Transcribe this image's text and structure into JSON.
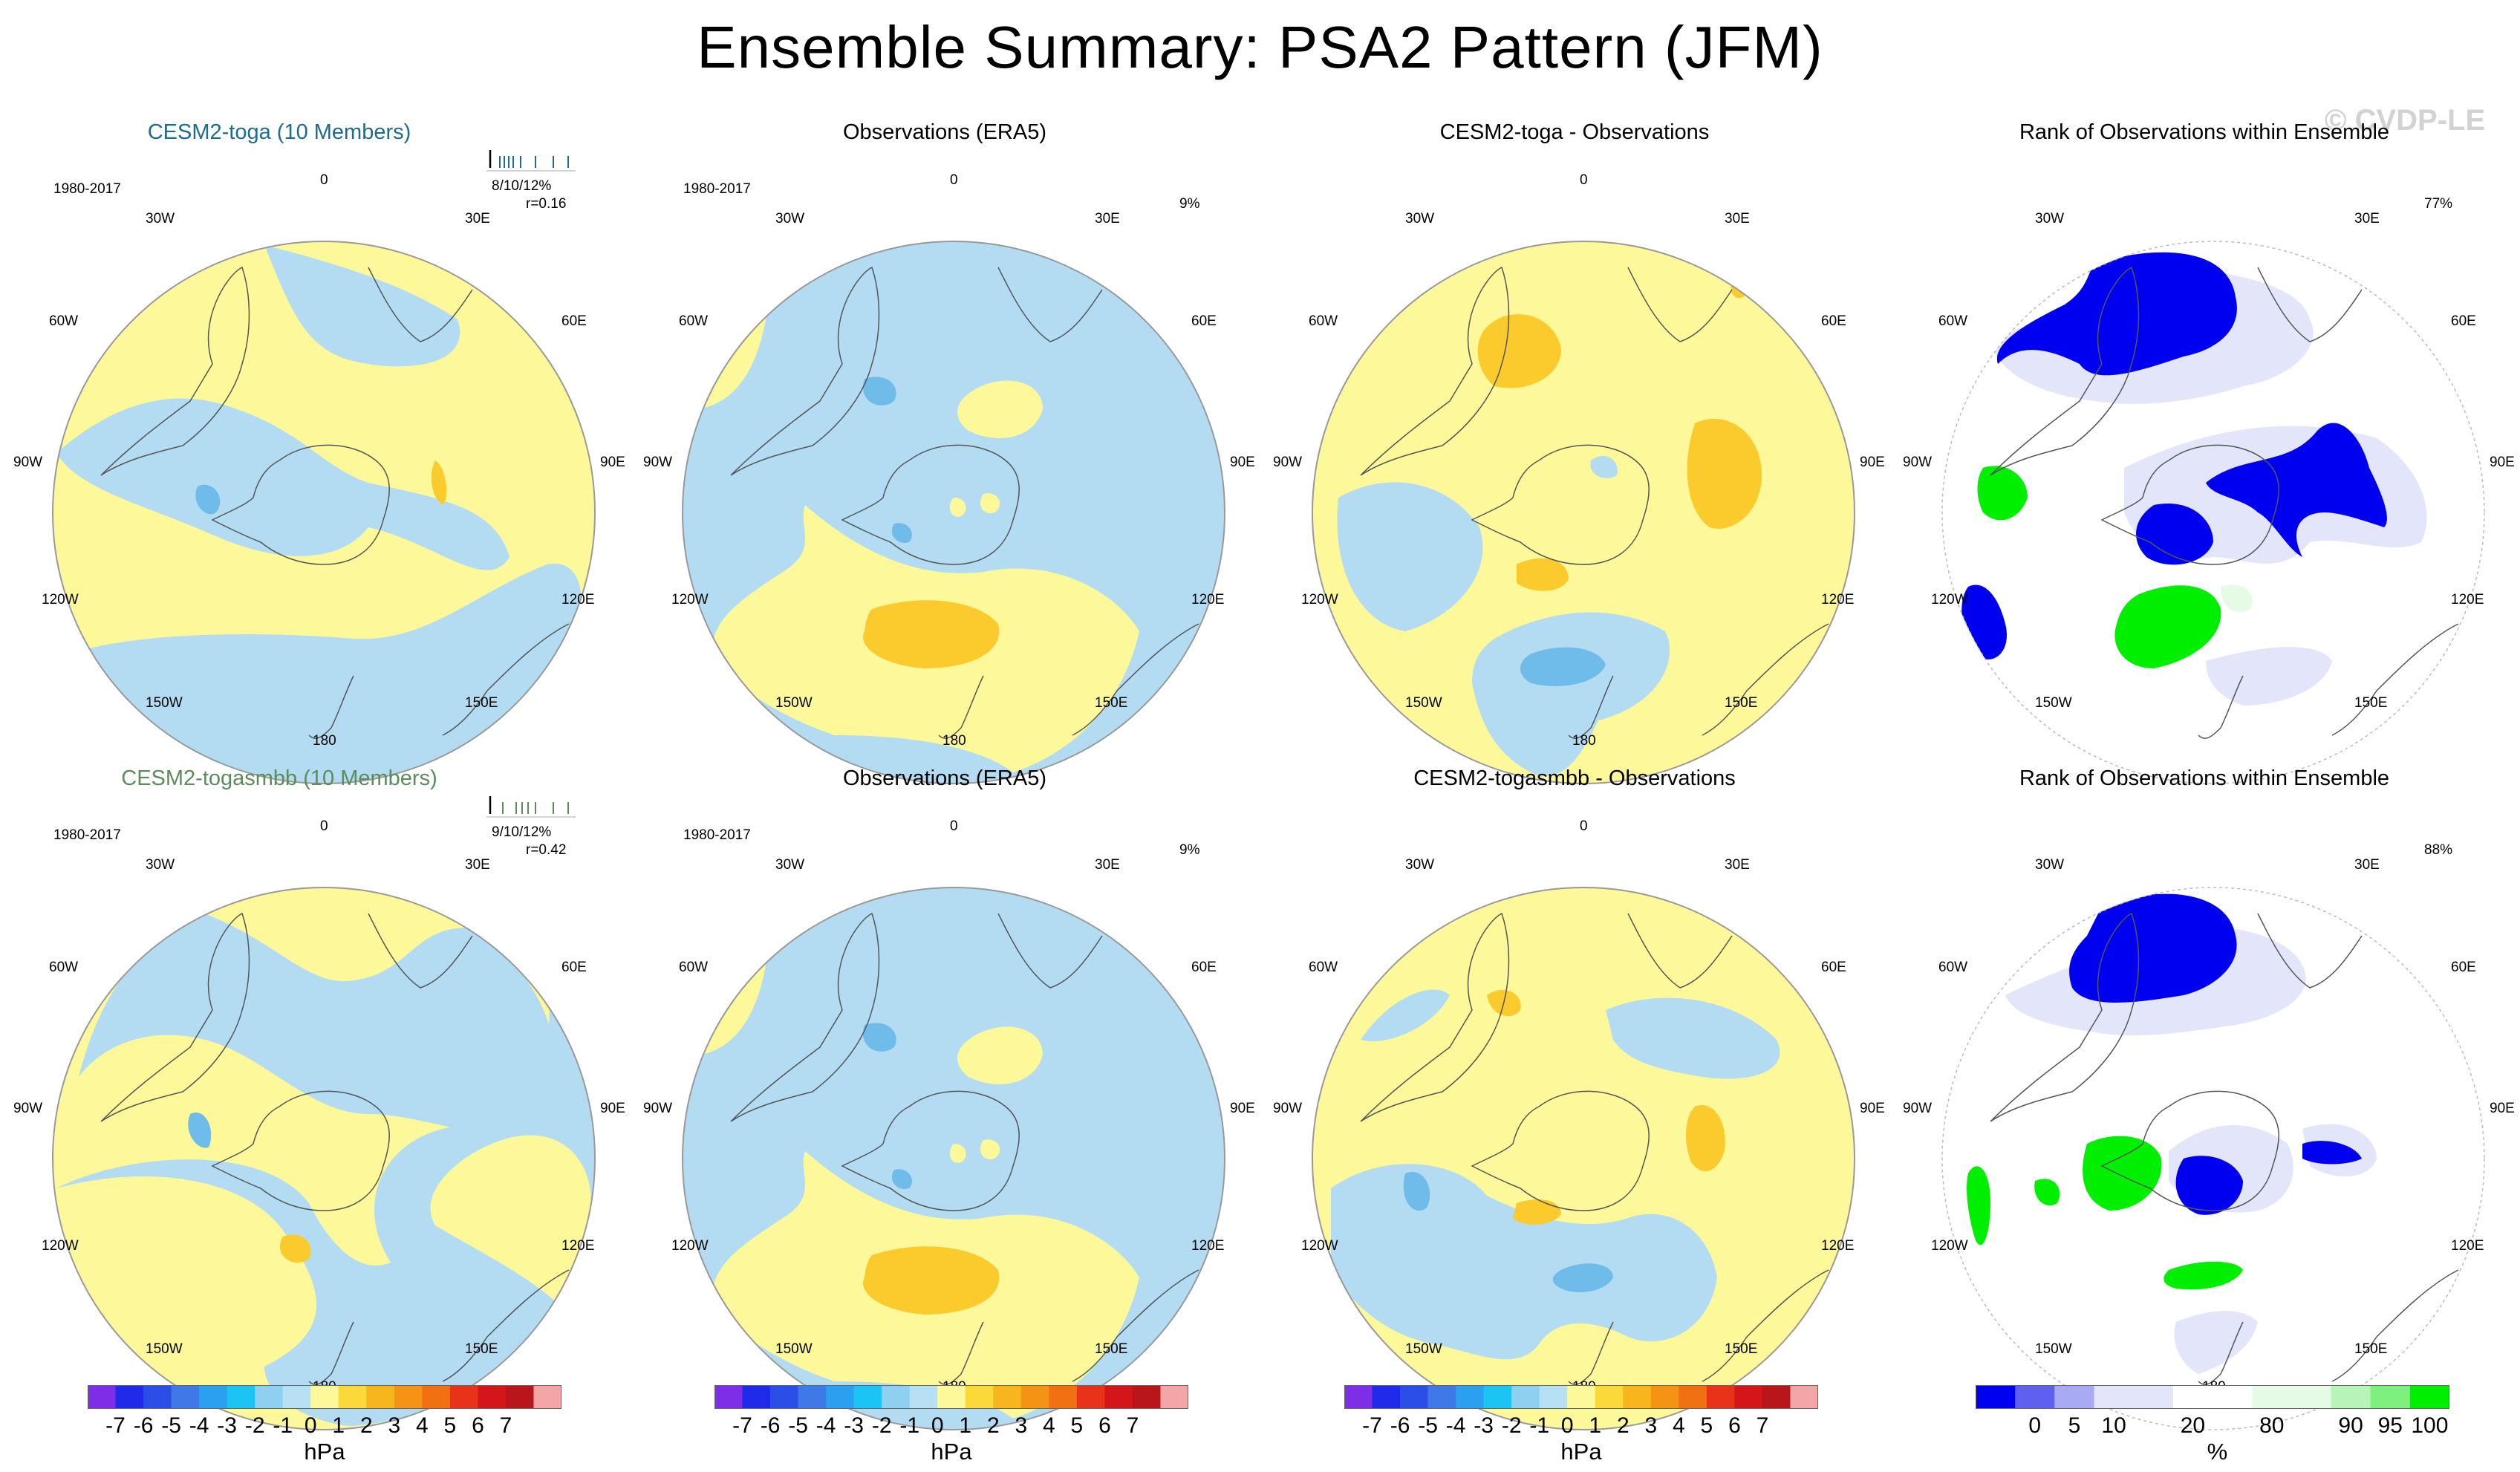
{
  "title": "Ensemble Summary: PSA2 Pattern (JFM)",
  "watermark": "© CVDP-LE",
  "colors": {
    "light_yellow": "#fdf99a",
    "orange_yellow": "#fbcb2d",
    "light_blue": "#b3dcf2",
    "mid_blue": "#6fbbe9",
    "rank_dark_blue": "#0000f0",
    "rank_pale_blue": "#e3e5fa",
    "rank_green": "#00ef00",
    "rank_pale_green": "#e6fbe6",
    "toga_title": "#1e6b8f",
    "togasmbb_title": "#5c8c5c"
  },
  "panels": [
    {
      "row": 0,
      "col": 0,
      "type": "model",
      "title": "CESM2-toga (10 Members)",
      "period": "1980-2017",
      "stat": "8/10/12%",
      "corr": "r=0.16"
    },
    {
      "row": 0,
      "col": 1,
      "type": "obs",
      "title": "Observations (ERA5)",
      "period": "1980-2017",
      "pct": "9%"
    },
    {
      "row": 0,
      "col": 2,
      "type": "diff",
      "title": "CESM2-toga - Observations"
    },
    {
      "row": 0,
      "col": 3,
      "type": "rank",
      "title": "Rank of Observations within Ensemble",
      "pct": "77%"
    },
    {
      "row": 1,
      "col": 0,
      "type": "model",
      "title": "CESM2-togasmbb (10 Members)",
      "period": "1980-2017",
      "stat": "9/10/12%",
      "corr": "r=0.42"
    },
    {
      "row": 1,
      "col": 1,
      "type": "obs",
      "title": "Observations (ERA5)",
      "period": "1980-2017",
      "pct": "9%"
    },
    {
      "row": 1,
      "col": 2,
      "type": "diff",
      "title": "CESM2-togasmbb - Observations"
    },
    {
      "row": 1,
      "col": 3,
      "type": "rank",
      "title": "Rank of Observations within Ensemble",
      "pct": "88%"
    }
  ],
  "longitude_labels": {
    "top": "0",
    "top_right": "30E",
    "top_left": "30W",
    "right_upper": "60E",
    "left_upper": "60W",
    "right": "90E",
    "left": "90W",
    "right_lower": "120E",
    "left_lower": "120W",
    "bottom_right": "150E",
    "bottom_left": "150W",
    "bottom": "180"
  },
  "colorbar_hpa": {
    "colors": [
      "#7d2ee6",
      "#1f2be8",
      "#2c4ee8",
      "#3f79e8",
      "#2ba0f0",
      "#1cc4f4",
      "#8fd0f0",
      "#b8e0f4",
      "#fdf99a",
      "#fbd93a",
      "#f7b61c",
      "#f59314",
      "#f07012",
      "#e8321a",
      "#d4151a",
      "#b8161a",
      "#f4a6a6"
    ],
    "labels": [
      "-7",
      "-6",
      "-5",
      "-4",
      "-3",
      "-2",
      "-1",
      "0",
      "1",
      "2",
      "3",
      "4",
      "5",
      "6",
      "7"
    ],
    "unit": "hPa"
  },
  "colorbar_rank": {
    "colors": [
      "#0000f0",
      "#6060f0",
      "#a8aaf4",
      "#e3e5fa",
      "#e3e5fa",
      "#ffffff",
      "#ffffff",
      "#e6fbe6",
      "#e6fbe6",
      "#b8f4b8",
      "#7ef07e",
      "#00ef00"
    ],
    "labels": [
      "0",
      "5",
      "10",
      "20",
      "80",
      "90",
      "95",
      "100"
    ],
    "unit": "%"
  }
}
